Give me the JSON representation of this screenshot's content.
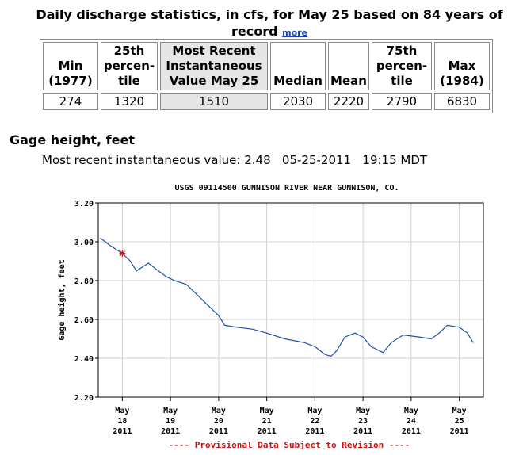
{
  "heading": {
    "text": "Daily discharge statistics, in cfs, for May 25 based on 84 years of record",
    "link": "more"
  },
  "table": {
    "header": [
      [
        "Min",
        "(1977)"
      ],
      [
        "25th",
        "percen-",
        "tile"
      ],
      [
        "Most Recent",
        "Instantaneous",
        "Value May 25"
      ],
      [
        "Median"
      ],
      [
        "Mean"
      ],
      [
        "75th",
        "percen-",
        "tile"
      ],
      [
        "Max",
        "(1984)"
      ]
    ],
    "rows": [
      [
        "274",
        "1320",
        "1510",
        "2030",
        "2220",
        "2790",
        "6830"
      ]
    ]
  },
  "gage": {
    "title": "Gage height, feet",
    "recent": "Most recent instantaneous value: 2.48   05-25-2011   19:15 MDT"
  },
  "chart_data": {
    "type": "line",
    "title": "USGS 09114500 GUNNISON RIVER NEAR GUNNISON, CO.",
    "ylabel": "Gage height, feet",
    "footnote": "---- Provisional Data Subject to Revision ----",
    "color": "#1f4fa8",
    "grid": true,
    "x": [
      "2011-05-17 13:00",
      "2011-05-17 18:00",
      "2011-05-18 00:00",
      "2011-05-18 04:00",
      "2011-05-18 07:00",
      "2011-05-18 10:00",
      "2011-05-18 13:00",
      "2011-05-18 18:00",
      "2011-05-18 22:00",
      "2011-05-19 02:00",
      "2011-05-19 08:00",
      "2011-05-19 13:00",
      "2011-05-19 19:00",
      "2011-05-20 00:00",
      "2011-05-20 03:00",
      "2011-05-20 09:00",
      "2011-05-20 17:00",
      "2011-05-21 00:00",
      "2011-05-21 09:00",
      "2011-05-21 19:00",
      "2011-05-22 00:00",
      "2011-05-22 05:00",
      "2011-05-22 08:00",
      "2011-05-22 11:00",
      "2011-05-22 15:00",
      "2011-05-22 20:00",
      "2011-05-23 00:00",
      "2011-05-23 04:00",
      "2011-05-23 10:00",
      "2011-05-23 14:00",
      "2011-05-23 20:00",
      "2011-05-24 04:00",
      "2011-05-24 10:00",
      "2011-05-24 14:00",
      "2011-05-24 18:00",
      "2011-05-25 00:00",
      "2011-05-25 04:00",
      "2011-05-25 07:00"
    ],
    "values": [
      3.02,
      2.98,
      2.94,
      2.9,
      2.85,
      2.87,
      2.89,
      2.85,
      2.82,
      2.8,
      2.78,
      2.73,
      2.67,
      2.62,
      2.57,
      2.56,
      2.55,
      2.53,
      2.5,
      2.48,
      2.46,
      2.42,
      2.41,
      2.44,
      2.51,
      2.53,
      2.51,
      2.46,
      2.43,
      2.48,
      2.52,
      2.51,
      2.5,
      2.53,
      2.57,
      2.56,
      2.53,
      2.48
    ],
    "highlight": {
      "x": "2011-05-18 00:00",
      "value": 2.94,
      "color": "#d01010"
    },
    "xlim": [
      "2011-05-17 12:00",
      "2011-05-25 12:00"
    ],
    "ylim": [
      2.2,
      3.2
    ],
    "xticks": [
      {
        "value": "2011-05-18 00:00",
        "label": [
          "May",
          "18",
          "2011"
        ]
      },
      {
        "value": "2011-05-19 00:00",
        "label": [
          "May",
          "19",
          "2011"
        ]
      },
      {
        "value": "2011-05-20 00:00",
        "label": [
          "May",
          "20",
          "2011"
        ]
      },
      {
        "value": "2011-05-21 00:00",
        "label": [
          "May",
          "21",
          "2011"
        ]
      },
      {
        "value": "2011-05-22 00:00",
        "label": [
          "May",
          "22",
          "2011"
        ]
      },
      {
        "value": "2011-05-23 00:00",
        "label": [
          "May",
          "23",
          "2011"
        ]
      },
      {
        "value": "2011-05-24 00:00",
        "label": [
          "May",
          "24",
          "2011"
        ]
      },
      {
        "value": "2011-05-25 00:00",
        "label": [
          "May",
          "25",
          "2011"
        ]
      }
    ],
    "yticks": [
      {
        "value": 2.2,
        "label": "2.20"
      },
      {
        "value": 2.4,
        "label": "2.40"
      },
      {
        "value": 2.6,
        "label": "2.60"
      },
      {
        "value": 2.8,
        "label": "2.80"
      },
      {
        "value": 3.0,
        "label": "3.00"
      },
      {
        "value": 3.2,
        "label": "3.20"
      }
    ]
  }
}
